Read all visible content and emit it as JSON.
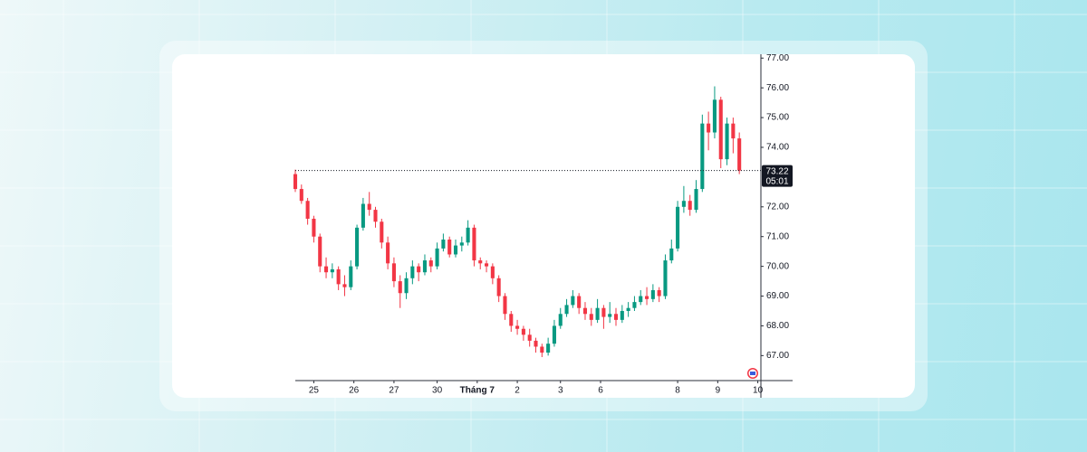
{
  "chart_data": {
    "type": "candlestick",
    "open": [
      73.1,
      72.6,
      72.2,
      71.6,
      71.0,
      70.0,
      69.8,
      69.9,
      69.4,
      69.3,
      70.0,
      71.3,
      72.1,
      71.9,
      71.5,
      70.8,
      70.1,
      69.5,
      69.1,
      69.6,
      70.0,
      69.8,
      70.2,
      70.0,
      70.6,
      70.9,
      70.4,
      70.7,
      70.8,
      71.3,
      70.2,
      70.1,
      70.0,
      69.6,
      69.0,
      68.4,
      68.0,
      67.9,
      67.7,
      67.5,
      67.3,
      67.1,
      67.4,
      68.0,
      68.4,
      68.7,
      69.0,
      68.6,
      68.4,
      68.2,
      68.6,
      68.3,
      68.4,
      68.2,
      68.5,
      68.6,
      68.8,
      69.0,
      68.9,
      69.2,
      69.0,
      70.2,
      70.6,
      72.0,
      72.2,
      71.9,
      72.6,
      74.8,
      74.5,
      75.6,
      73.6,
      74.8,
      74.3
    ],
    "high": [
      73.25,
      72.75,
      72.3,
      71.7,
      71.1,
      70.3,
      70.1,
      70.0,
      69.7,
      70.2,
      71.4,
      72.3,
      72.5,
      72.0,
      71.6,
      71.0,
      70.3,
      69.7,
      69.8,
      70.2,
      70.1,
      70.4,
      70.3,
      70.8,
      71.1,
      71.0,
      70.9,
      71.0,
      71.55,
      71.4,
      70.3,
      70.2,
      70.1,
      69.7,
      69.1,
      68.5,
      68.2,
      68.0,
      67.9,
      67.6,
      67.4,
      67.6,
      68.2,
      68.6,
      68.9,
      69.2,
      69.1,
      68.8,
      68.6,
      68.9,
      68.7,
      68.8,
      68.6,
      68.7,
      68.8,
      69.0,
      69.2,
      69.3,
      69.4,
      69.3,
      70.4,
      70.9,
      72.2,
      72.7,
      72.4,
      72.9,
      75.1,
      75.2,
      76.05,
      75.7,
      75.0,
      75.0,
      74.5
    ],
    "low": [
      72.5,
      72.1,
      71.4,
      70.8,
      69.8,
      69.6,
      69.6,
      69.2,
      69.0,
      69.2,
      69.9,
      71.2,
      71.7,
      71.3,
      70.6,
      69.9,
      69.3,
      68.6,
      68.9,
      69.4,
      69.5,
      69.7,
      69.8,
      69.9,
      70.5,
      70.3,
      70.3,
      70.5,
      70.7,
      70.0,
      69.9,
      69.8,
      69.4,
      68.8,
      68.2,
      67.8,
      67.7,
      67.5,
      67.3,
      67.1,
      66.95,
      67.0,
      67.3,
      67.9,
      68.3,
      68.6,
      68.4,
      68.2,
      68.0,
      68.1,
      67.9,
      68.1,
      68.0,
      68.1,
      68.3,
      68.5,
      68.7,
      68.7,
      68.8,
      68.8,
      68.9,
      70.1,
      70.5,
      71.8,
      71.7,
      71.8,
      72.5,
      73.9,
      74.3,
      73.3,
      73.4,
      73.8,
      73.1
    ],
    "close": [
      72.6,
      72.2,
      71.6,
      71.0,
      70.0,
      69.8,
      69.9,
      69.4,
      69.3,
      70.0,
      71.3,
      72.1,
      71.9,
      71.5,
      70.8,
      70.1,
      69.5,
      69.1,
      69.6,
      70.0,
      69.8,
      70.2,
      70.0,
      70.6,
      70.9,
      70.4,
      70.7,
      70.8,
      71.3,
      70.2,
      70.1,
      70.0,
      69.6,
      69.0,
      68.4,
      68.0,
      67.9,
      67.7,
      67.5,
      67.3,
      67.1,
      67.4,
      68.0,
      68.4,
      68.7,
      69.0,
      68.6,
      68.4,
      68.2,
      68.6,
      68.3,
      68.4,
      68.2,
      68.5,
      68.6,
      68.8,
      69.0,
      68.9,
      69.2,
      69.0,
      70.2,
      70.6,
      72.0,
      72.2,
      71.9,
      72.6,
      74.8,
      74.5,
      75.6,
      73.6,
      74.8,
      74.3,
      73.22
    ],
    "up_color": "#089981",
    "down_color": "#f23645",
    "ylim": [
      66.16,
      77.19
    ],
    "yticks": [
      {
        "value": 77,
        "label": "77.00"
      },
      {
        "value": 76,
        "label": "76.00"
      },
      {
        "value": 75,
        "label": "75.00"
      },
      {
        "value": 74,
        "label": "74.00"
      },
      {
        "value": 72,
        "label": "72.00"
      },
      {
        "value": 71,
        "label": "71.00"
      },
      {
        "value": 70,
        "label": "70.00"
      },
      {
        "value": 69,
        "label": "69.00"
      },
      {
        "value": 68,
        "label": "68.00"
      },
      {
        "value": 67,
        "label": "67.00"
      }
    ],
    "xlim": [
      0,
      75.5
    ],
    "xticks": [
      {
        "value": 3,
        "label": "25"
      },
      {
        "value": 9.5,
        "label": "26"
      },
      {
        "value": 16,
        "label": "27"
      },
      {
        "value": 23,
        "label": "30"
      },
      {
        "value": 29.5,
        "label": "Tháng 7"
      },
      {
        "value": 36,
        "label": "2"
      },
      {
        "value": 43,
        "label": "3"
      },
      {
        "value": 49.5,
        "label": "6"
      },
      {
        "value": 62,
        "label": "8"
      },
      {
        "value": 68.5,
        "label": "9"
      },
      {
        "value": 75,
        "label": "10"
      }
    ],
    "price_line": {
      "value": 73.22,
      "label": "73.22",
      "countdown": "05:01"
    }
  }
}
